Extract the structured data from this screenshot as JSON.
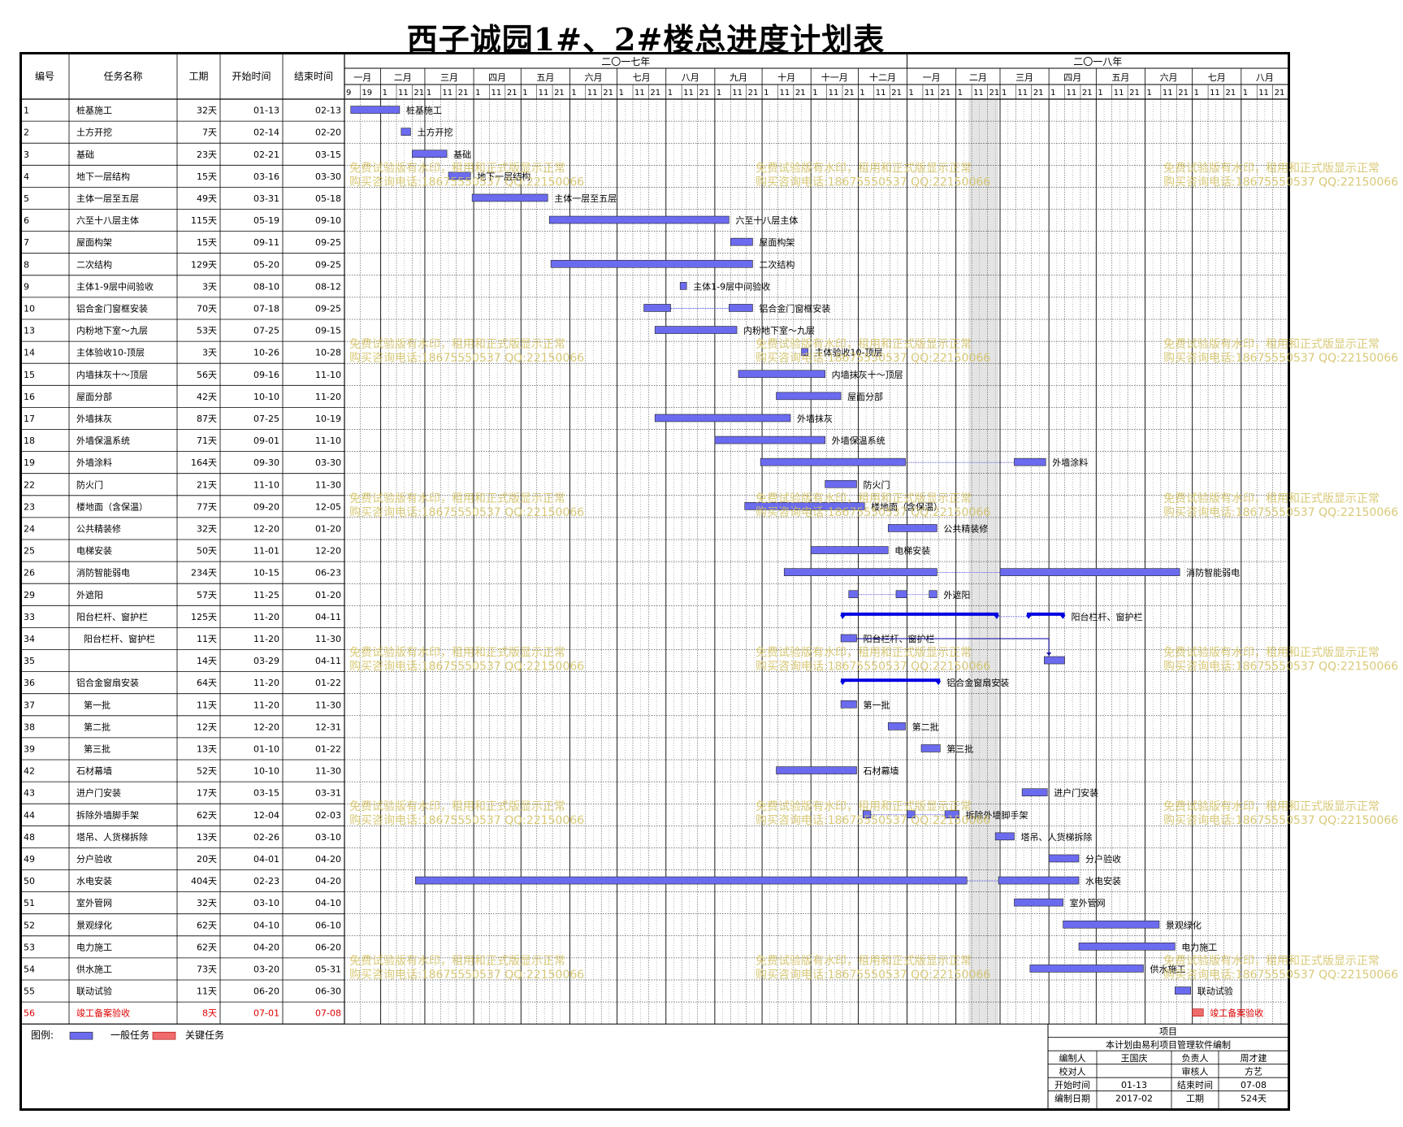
{
  "title": "西子诚园1#、2#楼总进度计划表",
  "headers": {
    "id": "编号",
    "name": "任务名称",
    "duration": "工期",
    "start": "开始时间",
    "end": "结束时间"
  },
  "years": [
    {
      "label": "二〇一七年",
      "start_month": 0,
      "months": 12
    },
    {
      "label": "二〇一八年",
      "start_month": 12,
      "months": 8
    }
  ],
  "months": [
    "一月",
    "二月",
    "三月",
    "四月",
    "五月",
    "六月",
    "七月",
    "八月",
    "九月",
    "十月",
    "十一月",
    "十二月",
    "一月",
    "二月",
    "三月",
    "四月",
    "五月",
    "六月",
    "七月",
    "八月"
  ],
  "first_month_days": [
    "9",
    "19"
  ],
  "day_ticks": [
    "1",
    "11",
    "21"
  ],
  "colors": {
    "normal": "#6b6bf0",
    "critical": "#f06b6b",
    "summary": "#0000e0",
    "link": "#5a5ae0",
    "watermark": "#d2c060",
    "red_text": "#e00000"
  },
  "watermark_lines": [
    "免费试验版有水印，租用和正式版显示正常",
    "购买咨询电话:18675550537 QQ:22150066"
  ],
  "chart_data": {
    "type": "gantt",
    "title": "西子诚园1#、2#楼总进度计划表",
    "x_range": [
      "2017-01-09",
      "2018-08-31"
    ],
    "tasks": [
      {
        "id": "1",
        "name": "桩基施工",
        "duration": "32天",
        "start": "01-13",
        "end": "02-13",
        "segments": [
          [
            "2017-01-13",
            "2017-02-13"
          ]
        ],
        "style": "normal"
      },
      {
        "id": "2",
        "name": "土方开挖",
        "duration": "7天",
        "start": "02-14",
        "end": "02-20",
        "segments": [
          [
            "2017-02-14",
            "2017-02-20"
          ]
        ],
        "style": "normal"
      },
      {
        "id": "3",
        "name": "基础",
        "duration": "23天",
        "start": "02-21",
        "end": "03-15",
        "segments": [
          [
            "2017-02-21",
            "2017-03-15"
          ]
        ],
        "style": "normal"
      },
      {
        "id": "4",
        "name": "地下一层结构",
        "duration": "15天",
        "start": "03-16",
        "end": "03-30",
        "segments": [
          [
            "2017-03-16",
            "2017-03-30"
          ]
        ],
        "style": "normal"
      },
      {
        "id": "5",
        "name": "主体一层至五层",
        "duration": "49天",
        "start": "03-31",
        "end": "05-18",
        "segments": [
          [
            "2017-03-31",
            "2017-05-18"
          ]
        ],
        "style": "normal"
      },
      {
        "id": "6",
        "name": "六至十八层主体",
        "duration": "115天",
        "start": "05-19",
        "end": "09-10",
        "segments": [
          [
            "2017-05-19",
            "2017-09-10"
          ]
        ],
        "style": "normal"
      },
      {
        "id": "7",
        "name": "屋面构架",
        "duration": "15天",
        "start": "09-11",
        "end": "09-25",
        "segments": [
          [
            "2017-09-11",
            "2017-09-25"
          ]
        ],
        "style": "normal"
      },
      {
        "id": "8",
        "name": "二次结构",
        "duration": "129天",
        "start": "05-20",
        "end": "09-25",
        "segments": [
          [
            "2017-05-20",
            "2017-09-25"
          ]
        ],
        "style": "normal"
      },
      {
        "id": "9",
        "name": "主体1-9层中间验收",
        "duration": "3天",
        "start": "08-10",
        "end": "08-12",
        "segments": [
          [
            "2017-08-10",
            "2017-08-12"
          ]
        ],
        "style": "normal"
      },
      {
        "id": "10",
        "name": "铝合金门窗框安装",
        "duration": "70天",
        "start": "07-18",
        "end": "09-25",
        "segments": [
          [
            "2017-07-18",
            "2017-08-04"
          ],
          [
            "2017-09-10",
            "2017-09-25"
          ]
        ],
        "style": "normal"
      },
      {
        "id": "13",
        "name": "内粉地下室～九层",
        "duration": "53天",
        "start": "07-25",
        "end": "09-15",
        "segments": [
          [
            "2017-07-25",
            "2017-09-15"
          ]
        ],
        "style": "normal"
      },
      {
        "id": "14",
        "name": "主体验收10-顶层",
        "duration": "3天",
        "start": "10-26",
        "end": "10-28",
        "segments": [
          [
            "2017-10-26",
            "2017-10-28"
          ]
        ],
        "style": "normal"
      },
      {
        "id": "15",
        "name": "内墙抹灰十～顶层",
        "duration": "56天",
        "start": "09-16",
        "end": "11-10",
        "segments": [
          [
            "2017-09-16",
            "2017-11-10"
          ]
        ],
        "style": "normal"
      },
      {
        "id": "16",
        "name": "屋面分部",
        "duration": "42天",
        "start": "10-10",
        "end": "11-20",
        "segments": [
          [
            "2017-10-10",
            "2017-11-20"
          ]
        ],
        "style": "normal"
      },
      {
        "id": "17",
        "name": "外墙抹灰",
        "duration": "87天",
        "start": "07-25",
        "end": "10-19",
        "segments": [
          [
            "2017-07-25",
            "2017-10-19"
          ]
        ],
        "style": "normal"
      },
      {
        "id": "18",
        "name": "外墙保温系统",
        "duration": "71天",
        "start": "09-01",
        "end": "11-10",
        "segments": [
          [
            "2017-09-01",
            "2017-11-10"
          ]
        ],
        "style": "normal"
      },
      {
        "id": "19",
        "name": "外墙涂料",
        "duration": "164天",
        "start": "09-30",
        "end": "03-30",
        "segments": [
          [
            "2017-09-30",
            "2017-12-31"
          ],
          [
            "2018-03-10",
            "2018-03-30"
          ]
        ],
        "style": "normal"
      },
      {
        "id": "22",
        "name": "防火门",
        "duration": "21天",
        "start": "11-10",
        "end": "11-30",
        "segments": [
          [
            "2017-11-10",
            "2017-11-30"
          ]
        ],
        "style": "normal"
      },
      {
        "id": "23",
        "name": "楼地面（含保温）",
        "duration": "77天",
        "start": "09-20",
        "end": "12-05",
        "segments": [
          [
            "2017-09-20",
            "2017-12-05"
          ]
        ],
        "style": "normal"
      },
      {
        "id": "24",
        "name": "公共精装修",
        "duration": "32天",
        "start": "12-20",
        "end": "01-20",
        "segments": [
          [
            "2017-12-20",
            "2018-01-20"
          ]
        ],
        "style": "normal"
      },
      {
        "id": "25",
        "name": "电梯安装",
        "duration": "50天",
        "start": "11-01",
        "end": "12-20",
        "segments": [
          [
            "2017-11-01",
            "2017-12-20"
          ]
        ],
        "style": "normal"
      },
      {
        "id": "26",
        "name": "消防智能弱电",
        "duration": "234天",
        "start": "10-15",
        "end": "06-23",
        "segments": [
          [
            "2017-10-15",
            "2018-01-20"
          ],
          [
            "2018-03-01",
            "2018-06-23"
          ]
        ],
        "style": "normal"
      },
      {
        "id": "29",
        "name": "外遮阳",
        "duration": "57天",
        "start": "11-25",
        "end": "01-20",
        "segments": [
          [
            "2017-11-25",
            "2017-12-01"
          ],
          [
            "2017-12-25",
            "2018-01-01"
          ],
          [
            "2018-01-15",
            "2018-01-20"
          ]
        ],
        "style": "normal"
      },
      {
        "id": "33",
        "name": "阳台栏杆、窗护栏",
        "duration": "125天",
        "start": "11-20",
        "end": "04-11",
        "segments": [
          [
            "2017-11-20",
            "2018-02-28"
          ],
          [
            "2018-03-18",
            "2018-04-11"
          ]
        ],
        "style": "summary"
      },
      {
        "id": "34",
        "name": "阳台栏杆、窗护栏",
        "duration": "11天",
        "start": "11-20",
        "end": "11-30",
        "segments": [
          [
            "2017-11-20",
            "2017-11-30"
          ]
        ],
        "style": "normal",
        "indent": true
      },
      {
        "id": "35",
        "name": "",
        "duration": "14天",
        "start": "03-29",
        "end": "04-11",
        "segments": [
          [
            "2018-03-29",
            "2018-04-11"
          ]
        ],
        "style": "normal"
      },
      {
        "id": "36",
        "name": "铝合金窗扇安装",
        "duration": "64天",
        "start": "11-20",
        "end": "01-22",
        "segments": [
          [
            "2017-11-20",
            "2018-01-22"
          ]
        ],
        "style": "summary"
      },
      {
        "id": "37",
        "name": "第一批",
        "duration": "11天",
        "start": "11-20",
        "end": "11-30",
        "segments": [
          [
            "2017-11-20",
            "2017-11-30"
          ]
        ],
        "style": "normal",
        "indent": true
      },
      {
        "id": "38",
        "name": "第二批",
        "duration": "12天",
        "start": "12-20",
        "end": "12-31",
        "segments": [
          [
            "2017-12-20",
            "2017-12-31"
          ]
        ],
        "style": "normal",
        "indent": true
      },
      {
        "id": "39",
        "name": "第三批",
        "duration": "13天",
        "start": "01-10",
        "end": "01-22",
        "segments": [
          [
            "2018-01-10",
            "2018-01-22"
          ]
        ],
        "style": "normal",
        "indent": true
      },
      {
        "id": "42",
        "name": "石材幕墙",
        "duration": "52天",
        "start": "10-10",
        "end": "11-30",
        "segments": [
          [
            "2017-10-10",
            "2017-11-30"
          ]
        ],
        "style": "normal"
      },
      {
        "id": "43",
        "name": "进户门安装",
        "duration": "17天",
        "start": "03-15",
        "end": "03-31",
        "segments": [
          [
            "2018-03-15",
            "2018-03-31"
          ]
        ],
        "style": "normal"
      },
      {
        "id": "44",
        "name": "拆除外墙脚手架",
        "duration": "62天",
        "start": "12-04",
        "end": "02-03",
        "segments": [
          [
            "2017-12-04",
            "2017-12-09"
          ],
          [
            "2018-01-01",
            "2018-01-06"
          ],
          [
            "2018-01-25",
            "2018-02-03"
          ]
        ],
        "style": "normal"
      },
      {
        "id": "48",
        "name": "塔吊、人货梯拆除",
        "duration": "13天",
        "start": "02-26",
        "end": "03-10",
        "segments": [
          [
            "2018-02-26",
            "2018-03-10"
          ]
        ],
        "style": "normal"
      },
      {
        "id": "49",
        "name": "分户验收",
        "duration": "20天",
        "start": "04-01",
        "end": "04-20",
        "segments": [
          [
            "2018-04-01",
            "2018-04-20"
          ]
        ],
        "style": "normal"
      },
      {
        "id": "50",
        "name": "水电安装",
        "duration": "404天",
        "start": "02-23",
        "end": "04-20",
        "segments": [
          [
            "2017-02-23",
            "2018-02-08"
          ],
          [
            "2018-02-28",
            "2018-04-20"
          ]
        ],
        "style": "normal"
      },
      {
        "id": "51",
        "name": "室外管网",
        "duration": "32天",
        "start": "03-10",
        "end": "04-10",
        "segments": [
          [
            "2018-03-10",
            "2018-04-10"
          ]
        ],
        "style": "normal"
      },
      {
        "id": "52",
        "name": "景观绿化",
        "duration": "62天",
        "start": "04-10",
        "end": "06-10",
        "segments": [
          [
            "2018-04-10",
            "2018-06-10"
          ]
        ],
        "style": "normal"
      },
      {
        "id": "53",
        "name": "电力施工",
        "duration": "62天",
        "start": "04-20",
        "end": "06-20",
        "segments": [
          [
            "2018-04-20",
            "2018-06-20"
          ]
        ],
        "style": "normal"
      },
      {
        "id": "54",
        "name": "供水施工",
        "duration": "73天",
        "start": "03-20",
        "end": "05-31",
        "segments": [
          [
            "2018-03-20",
            "2018-05-31"
          ]
        ],
        "style": "normal"
      },
      {
        "id": "55",
        "name": "联动试验",
        "duration": "11天",
        "start": "06-20",
        "end": "06-30",
        "segments": [
          [
            "2018-06-20",
            "2018-06-30"
          ]
        ],
        "style": "normal"
      },
      {
        "id": "56",
        "name": "竣工备案验收",
        "duration": "8天",
        "start": "07-01",
        "end": "07-08",
        "segments": [
          [
            "2018-07-01",
            "2018-07-08"
          ]
        ],
        "style": "critical"
      }
    ]
  },
  "legend": {
    "label": "图例:",
    "normal": "一般任务",
    "critical": "关键任务"
  },
  "info_table": {
    "project": "项目",
    "software": "本计划由易利项目管理软件编制",
    "rows": [
      [
        "编制人",
        "王国庆",
        "负责人",
        "周才建"
      ],
      [
        "校对人",
        "",
        "审核人",
        "方艺"
      ],
      [
        "开始时间",
        "01-13",
        "结束时间",
        "07-08"
      ],
      [
        "编制日期",
        "2017-02",
        "工期",
        "524天"
      ]
    ]
  }
}
